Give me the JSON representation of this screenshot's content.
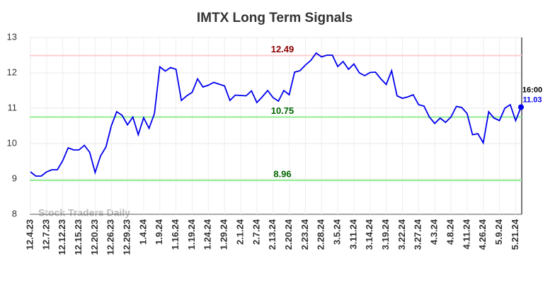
{
  "chart_data": {
    "type": "line",
    "title": "IMTX Long Term Signals",
    "watermark": "Stock Traders Daily",
    "categories": [
      "12.4.23",
      null,
      null,
      "12.7.23",
      null,
      null,
      "12.12.23",
      null,
      null,
      "12.15.23",
      null,
      null,
      "12.20.23",
      null,
      null,
      "12.26.23",
      null,
      null,
      "12.29.23",
      null,
      null,
      "1.4.24",
      null,
      null,
      "1.9.24",
      null,
      null,
      "1.16.24",
      null,
      null,
      "1.19.24",
      null,
      null,
      "1.24.24",
      null,
      null,
      "1.29.24",
      null,
      null,
      "2.1.24",
      null,
      null,
      "2.7.24",
      null,
      null,
      "2.13.24",
      null,
      null,
      "2.20.24",
      null,
      null,
      "2.23.24",
      null,
      null,
      "2.28.24",
      null,
      null,
      "3.5.24",
      null,
      null,
      "3.11.24",
      null,
      null,
      "3.14.24",
      null,
      null,
      "3.19.24",
      null,
      null,
      "3.22.24",
      null,
      null,
      "3.27.24",
      null,
      null,
      "4.3.24",
      null,
      null,
      "4.8.24",
      null,
      null,
      "4.11.24",
      null,
      null,
      "4.26.24",
      null,
      null,
      "5.9.24",
      null,
      null,
      "5.21.24",
      null
    ],
    "series": [
      {
        "name": "IMTX",
        "color": "#0000ee",
        "values": [
          9.2,
          9.08,
          9.08,
          9.2,
          9.26,
          9.26,
          9.52,
          9.88,
          9.82,
          9.82,
          9.95,
          9.75,
          9.18,
          9.65,
          9.9,
          10.5,
          10.9,
          10.8,
          10.53,
          10.75,
          10.25,
          10.73,
          10.43,
          10.85,
          12.17,
          12.05,
          12.15,
          12.1,
          11.22,
          11.35,
          11.45,
          11.83,
          11.6,
          11.65,
          11.73,
          11.68,
          11.63,
          11.22,
          11.37,
          11.36,
          11.35,
          11.49,
          11.16,
          11.32,
          11.5,
          11.3,
          11.2,
          11.5,
          11.38,
          12.02,
          12.06,
          12.22,
          12.35,
          12.56,
          12.45,
          12.5,
          12.5,
          12.18,
          12.32,
          12.1,
          12.25,
          12.0,
          11.92,
          12.01,
          12.02,
          11.83,
          11.67,
          12.06,
          11.35,
          11.28,
          11.32,
          11.38,
          11.1,
          11.06,
          10.75,
          10.57,
          10.72,
          10.6,
          10.75,
          11.05,
          11.02,
          10.85,
          10.25,
          10.28,
          10.02,
          10.9,
          10.72,
          10.65,
          11.0,
          11.1,
          10.65,
          11.03
        ]
      }
    ],
    "last_time": "16:00",
    "hlines": [
      {
        "value": 12.49,
        "color": "#ffcccc",
        "label_color": "#8b0000"
      },
      {
        "value": 10.75,
        "color": "#90ee90",
        "label_color": "#006400"
      },
      {
        "value": 8.96,
        "color": "#90ee90",
        "label_color": "#006400"
      }
    ],
    "ylim": [
      8,
      13
    ],
    "yticks": [
      8,
      9,
      10,
      11,
      12,
      13
    ],
    "grid": true
  }
}
